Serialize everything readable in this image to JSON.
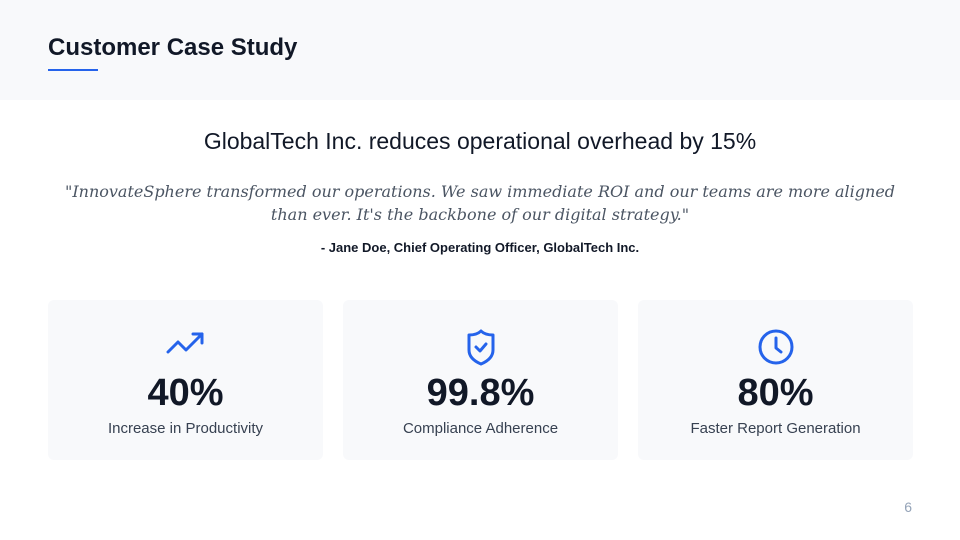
{
  "header": {
    "title": "Customer Case Study"
  },
  "headline": "GlobalTech Inc. reduces operational overhead by 15%",
  "quote": "\"InnovateSphere transformed our operations. We saw immediate ROI and our teams are more aligned than ever. It's the backbone of our digital strategy.\"",
  "attribution": "- Jane Doe, Chief Operating Officer, GlobalTech Inc.",
  "stats": [
    {
      "icon": "trending-up-icon",
      "value": "40%",
      "label": "Increase in Productivity"
    },
    {
      "icon": "shield-check-icon",
      "value": "99.8%",
      "label": "Compliance Adherence"
    },
    {
      "icon": "clock-icon",
      "value": "80%",
      "label": "Faster Report Generation"
    }
  ],
  "accent": "#2563eb",
  "page_number": "6"
}
